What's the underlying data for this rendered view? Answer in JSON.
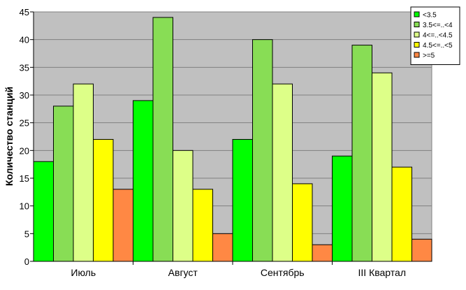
{
  "chart_data": {
    "type": "bar",
    "ylabel": "Количество станций",
    "xlabel": "",
    "title": "",
    "ylim": [
      0,
      45
    ],
    "ytick_step": 5,
    "yticks": [
      "0",
      "5",
      "10",
      "15",
      "20",
      "25",
      "30",
      "35",
      "40",
      "45"
    ],
    "grid": true,
    "legend_position": "top-right",
    "categories": [
      "Июль",
      "Август",
      "Сентябрь",
      "III Квартал"
    ],
    "series": [
      {
        "name": "<3.5",
        "color": "#00ff00",
        "values": [
          18,
          29,
          22,
          19
        ]
      },
      {
        "name": "3.5<=..<4",
        "color": "#88dd55",
        "values": [
          28,
          44,
          40,
          39
        ]
      },
      {
        "name": "4<=..<4.5",
        "color": "#ddff88",
        "values": [
          32,
          20,
          32,
          34
        ]
      },
      {
        "name": "4.5<=..<5",
        "color": "#ffff00",
        "values": [
          22,
          13,
          14,
          17
        ]
      },
      {
        "name": ">=5",
        "color": "#ff8844",
        "values": [
          13,
          5,
          3,
          4
        ]
      }
    ],
    "plot_background": "#c0c0c0"
  }
}
